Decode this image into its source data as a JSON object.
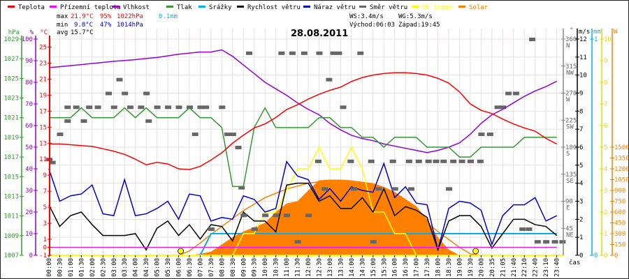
{
  "legend": [
    {
      "label": "Teplota",
      "color": "#ff0000"
    },
    {
      "label": "Přízemní teplota",
      "color": "#ff00ff"
    },
    {
      "label": "Vlhkost",
      "color": "#9400d3"
    },
    {
      "label": "Tlak",
      "color": "#339933"
    },
    {
      "label": "Srážky",
      "color": "#00b0f0"
    },
    {
      "label": "Rychlost větru",
      "color": "#000000"
    },
    {
      "label": "Náraz větru",
      "color": "#0000cc"
    },
    {
      "label": "Směr větru",
      "color": "#666666"
    },
    {
      "label": "UV index",
      "color": "#ffff00"
    },
    {
      "label": "Solar",
      "color": "#ff8000"
    }
  ],
  "stats": {
    "max_label": "max",
    "max_temp": "21.9°C",
    "max_hum": "95%",
    "max_press": "1022hPa",
    "rain": "0.1mm",
    "min_label": "min",
    "min_temp": "9.8°C",
    "min_hum": "47%",
    "min_press": "1014hPa",
    "avg_label": "avg",
    "avg_temp": "15.7°C",
    "ws": "WS:3.4m/s",
    "wg": "WG:5.3m/s",
    "sunrise": "Východ:06:03",
    "sunset": "Západ:19:45"
  },
  "chart_data": {
    "type": "line",
    "title": "28.08.2011",
    "xlabel": "čas",
    "x": [
      "00:00",
      "00:30",
      "01:00",
      "01:30",
      "02:00",
      "02:30",
      "03:00",
      "03:30",
      "04:00",
      "04:30",
      "05:00",
      "05:30",
      "06:00",
      "06:30",
      "07:00",
      "07:30",
      "08:00",
      "08:30",
      "09:00",
      "09:30",
      "10:00",
      "10:30",
      "11:00",
      "11:30",
      "12:00",
      "12:30",
      "13:00",
      "13:30",
      "14:00",
      "14:30",
      "15:00",
      "15:30",
      "16:00",
      "16:30",
      "17:00",
      "17:30",
      "18:00",
      "18:30",
      "19:00",
      "19:30",
      "20:00",
      "20:35",
      "21:05",
      "21:40",
      "22:10",
      "22:40",
      "23:10",
      "23:40"
    ],
    "axes": {
      "hpa": {
        "unit": "hPa",
        "range": [
          1007,
          1029
        ],
        "ticks": [
          "1029",
          "1027",
          "1025",
          "1023",
          "1021",
          "1019",
          "1017",
          "1015",
          "1013",
          "1011",
          "1009",
          "1007"
        ]
      },
      "pct": {
        "unit": "%",
        "range": [
          0,
          100
        ],
        "ticks": [
          "100",
          "90",
          "80",
          "70",
          "60",
          "50",
          "40",
          "30",
          "20",
          "10",
          "0"
        ]
      },
      "temp": {
        "unit": "°C",
        "range": [
          -1,
          26
        ],
        "ticks": [
          "25",
          "23",
          "21",
          "19",
          "17",
          "15",
          "13",
          "11",
          "9",
          "7",
          "5",
          "3",
          "1",
          "0",
          "-1"
        ]
      },
      "dir": {
        "unit": "°",
        "range": [
          0,
          360
        ],
        "ticks": [
          [
            "360",
            "N"
          ],
          [
            "315",
            "NW"
          ],
          [
            "270",
            "W"
          ],
          [
            "225",
            "SW"
          ],
          [
            "180",
            "S"
          ],
          [
            "135",
            "SE"
          ],
          [
            "90",
            "E"
          ],
          [
            "45",
            "NE"
          ]
        ]
      },
      "ms": {
        "unit": "m/s",
        "range": [
          0,
          12
        ],
        "ticks": [
          "12",
          "11",
          "10",
          "9",
          "8",
          "7",
          "6",
          "5",
          "4",
          "3",
          "2",
          "1",
          "0"
        ]
      },
      "mm": {
        "unit": "mm",
        "range": [
          0,
          1
        ],
        "ticks": [
          "1",
          "0"
        ]
      },
      "uv": {
        "unit": "",
        "range": [
          0,
          10
        ],
        "ticks": [
          "10",
          "9",
          "8",
          "7",
          "6",
          "5",
          "4",
          "3",
          "2",
          "1",
          "0"
        ]
      },
      "w": {
        "unit": "W",
        "range": [
          0,
          3000
        ],
        "ticks": [
          "1500",
          "1350",
          "1200",
          "1050",
          "900",
          "750",
          "600",
          "450",
          "300",
          "150",
          "0"
        ]
      }
    },
    "series": {
      "temperature": [
        12.9,
        12.9,
        12.8,
        12.7,
        12.6,
        12.3,
        12.0,
        11.6,
        11.0,
        10.3,
        10.6,
        10.4,
        9.8,
        9.7,
        10.1,
        10.9,
        11.8,
        13.0,
        14.0,
        14.9,
        15.4,
        16.2,
        17.2,
        17.8,
        18.5,
        19.1,
        19.6,
        20.0,
        20.7,
        21.2,
        21.5,
        21.7,
        21.8,
        21.8,
        21.7,
        21.5,
        21.1,
        20.5,
        19.4,
        17.9,
        17.1,
        16.7,
        16.0,
        15.4,
        14.9,
        14.5,
        13.6,
        12.9
      ],
      "ground_temperature": [
        0,
        0,
        0,
        0,
        0,
        0,
        0,
        0,
        0,
        0,
        0,
        0,
        0,
        0,
        0,
        0,
        0,
        0,
        0,
        0,
        0,
        0,
        0,
        0,
        0,
        0,
        0,
        0,
        0,
        0,
        0,
        0,
        0,
        0,
        0,
        0,
        0,
        0,
        0,
        0,
        0,
        0,
        0,
        0,
        0,
        0,
        0,
        0
      ],
      "humidity": [
        86.8,
        87.2,
        87.7,
        88.2,
        88.7,
        89.2,
        89.7,
        90.1,
        90.5,
        91,
        91.5,
        92.2,
        93,
        93.5,
        94,
        94,
        95,
        92,
        88,
        84,
        80,
        77,
        74,
        70.5,
        67.5,
        65,
        61,
        58,
        55.5,
        54,
        53,
        51.5,
        50.5,
        49.5,
        48.5,
        47.5,
        48.5,
        50,
        52,
        56,
        61,
        65,
        67.5,
        70.5,
        73.5,
        76,
        78,
        80.5
      ],
      "pressure": [
        1021,
        1021,
        1021,
        1022,
        1021,
        1021,
        1021,
        1022,
        1021,
        1022,
        1021,
        1021,
        1021,
        1022,
        1021,
        1021,
        1020,
        1014,
        1014,
        1020,
        1022,
        1020,
        1020,
        1020,
        1020,
        1021,
        1021,
        1020,
        1020,
        1019,
        1019,
        1018,
        1019,
        1019,
        1019,
        1018,
        1018,
        1018,
        1017,
        1017,
        1018,
        1018,
        1018,
        1018,
        1019,
        1019,
        1019,
        1019
      ],
      "rain": [
        0,
        0,
        0,
        0,
        0,
        0,
        0,
        0,
        0,
        0,
        0,
        0,
        0,
        0,
        0,
        0.1,
        0.1,
        0.1,
        0.1,
        0.1,
        0.1,
        0.1,
        0.1,
        0.1,
        0.1,
        0.1,
        0.1,
        0.1,
        0.1,
        0.1,
        0.1,
        0.1,
        0.1,
        0.1,
        0.1,
        0.1,
        0.1,
        0.1,
        0.1,
        0.1,
        0.1,
        0.1,
        0.1,
        0.1,
        0.1,
        0.1,
        0.1,
        0.1
      ],
      "wind_speed": [
        2.8,
        1.6,
        2.2,
        2.4,
        1.7,
        1.1,
        1.1,
        1.1,
        1.2,
        0.3,
        1.5,
        1.9,
        1.1,
        1.7,
        0.9,
        1.7,
        1.6,
        0.8,
        2.4,
        1.9,
        1.9,
        1.3,
        3.9,
        4.0,
        4.0,
        3.0,
        3.3,
        2.6,
        2.6,
        3.2,
        2.4,
        3.7,
        2.2,
        2.7,
        2.5,
        2.1,
        0.3,
        1.9,
        2.2,
        2.2,
        1.6,
        0.4,
        1.2,
        2.0,
        2.0,
        1.7,
        1.6,
        1.1
      ],
      "wind_gust": [
        4.8,
        3.0,
        3.3,
        3.4,
        3.9,
        2.3,
        2.2,
        4.2,
        2.2,
        2.3,
        2.6,
        3.0,
        2.0,
        3.4,
        3.3,
        1.9,
        2.1,
        2.0,
        3.3,
        3.1,
        2.4,
        2.6,
        5.2,
        4.4,
        4.2,
        3.1,
        3.7,
        3.0,
        3.8,
        3.6,
        3.5,
        5.1,
        3.2,
        3.8,
        2.9,
        2.8,
        0.3,
        2.6,
        3.0,
        2.9,
        2.5,
        0.6,
        2.2,
        2.8,
        2.8,
        3.2,
        1.9,
        2.2
      ],
      "uv_index": [
        0,
        0,
        0,
        0,
        0,
        0,
        0,
        0,
        0,
        0,
        0,
        0,
        0,
        0,
        0,
        0,
        0,
        0,
        1,
        1,
        2,
        2,
        3,
        4,
        4,
        5,
        4,
        4,
        5,
        4,
        2,
        2,
        1,
        1,
        0,
        0,
        0,
        0,
        0,
        0,
        0,
        0,
        0,
        0,
        0,
        0,
        0,
        0
      ],
      "solar": [
        0,
        0,
        0,
        0,
        0,
        0,
        0,
        0,
        0,
        0,
        0,
        0,
        0,
        0,
        20,
        50,
        150,
        250,
        330,
        390,
        450,
        600,
        720,
        750,
        900,
        1040,
        1050,
        1050,
        1040,
        1020,
        1000,
        950,
        880,
        780,
        680,
        500,
        250,
        80,
        0,
        0,
        0,
        0,
        0,
        0,
        0,
        0,
        0,
        0
      ],
      "solar_max": [
        0,
        0,
        0,
        0,
        0,
        0,
        0,
        0,
        0,
        0,
        0,
        0,
        0,
        60,
        170,
        290,
        400,
        510,
        620,
        710,
        800,
        860,
        920,
        960,
        1000,
        1020,
        1030,
        1025,
        1010,
        970,
        920,
        860,
        780,
        680,
        560,
        450,
        330,
        220,
        110,
        20,
        0,
        0,
        0,
        0,
        0,
        0,
        0,
        0
      ],
      "wind_direction": [
        [
          0,
          160
        ],
        [
          0.3,
          155
        ],
        [
          1,
          202
        ],
        [
          1.7,
          224
        ],
        [
          1.7,
          247
        ],
        [
          2.5,
          247
        ],
        [
          3.2,
          224
        ],
        [
          3.7,
          247
        ],
        [
          4.5,
          247
        ],
        [
          5.5,
          270
        ],
        [
          6,
          247
        ],
        [
          6.5,
          293
        ],
        [
          7,
          270
        ],
        [
          7.5,
          247
        ],
        [
          8.5,
          247
        ],
        [
          9,
          270
        ],
        [
          9.2,
          224
        ],
        [
          10,
          247
        ],
        [
          11,
          247
        ],
        [
          12,
          247
        ],
        [
          13,
          247
        ],
        [
          13.5,
          202
        ],
        [
          14,
          247
        ],
        [
          14.5,
          247
        ],
        [
          15,
          44
        ],
        [
          16,
          247
        ],
        [
          16.5,
          202
        ],
        [
          17,
          202
        ],
        [
          17.5,
          180
        ],
        [
          17.8,
          113
        ],
        [
          18,
          67
        ],
        [
          18.5,
          337
        ],
        [
          19,
          44
        ],
        [
          20,
          67
        ],
        [
          21,
          67
        ],
        [
          21.5,
          337
        ],
        [
          22,
          67
        ],
        [
          22.5,
          337
        ],
        [
          23,
          23
        ],
        [
          23.6,
          337
        ],
        [
          24,
          67
        ],
        [
          24.9,
          157
        ],
        [
          25,
          337
        ],
        [
          25.5,
          111
        ],
        [
          25.9,
          293
        ],
        [
          26.3,
          337
        ],
        [
          26.8,
          337
        ],
        [
          27.2,
          247
        ],
        [
          27.9,
          157
        ],
        [
          28.2,
          111
        ],
        [
          28.8,
          337
        ],
        [
          29.8,
          157
        ],
        [
          30,
          23
        ],
        [
          30.5,
          111
        ],
        [
          31.8,
          157
        ],
        [
          32,
          111
        ],
        [
          33.3,
          157
        ],
        [
          33.5,
          111
        ],
        [
          34.2,
          157
        ],
        [
          35.1,
          157
        ],
        [
          35.8,
          157
        ],
        [
          36.5,
          157
        ],
        [
          37,
          111
        ],
        [
          37.4,
          157
        ],
        [
          38.2,
          157
        ],
        [
          39,
          157
        ],
        [
          39.9,
          157
        ],
        [
          40,
          202
        ],
        [
          40.8,
          202
        ],
        [
          41.5,
          247
        ],
        [
          42,
          247
        ],
        [
          42.5,
          270
        ],
        [
          43.2,
          270
        ],
        [
          43.8,
          44
        ],
        [
          44.4,
          44
        ],
        [
          44.7,
          360
        ],
        [
          45.2,
          23
        ],
        [
          46,
          23
        ],
        [
          46.8,
          23
        ],
        [
          47.5,
          23
        ]
      ],
      "sunrise_index": 12.2,
      "sunset_index": 39.5
    }
  }
}
